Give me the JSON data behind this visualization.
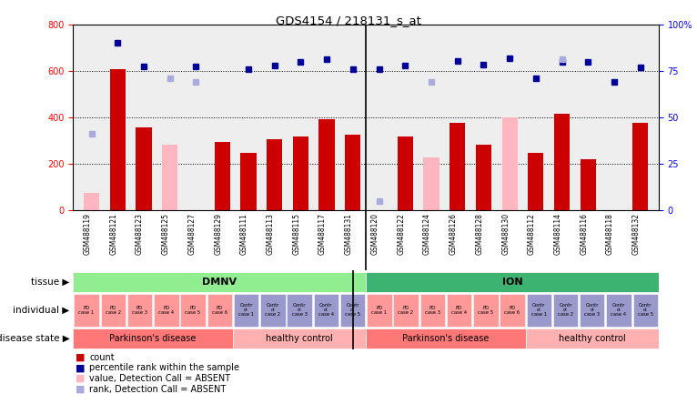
{
  "title": "GDS4154 / 218131_s_at",
  "samples": [
    "GSM488119",
    "GSM488121",
    "GSM488123",
    "GSM488125",
    "GSM488127",
    "GSM488129",
    "GSM488111",
    "GSM488113",
    "GSM488115",
    "GSM488117",
    "GSM488131",
    "GSM488120",
    "GSM488122",
    "GSM488124",
    "GSM488126",
    "GSM488128",
    "GSM488130",
    "GSM488112",
    "GSM488114",
    "GSM488116",
    "GSM488118",
    "GSM488132"
  ],
  "count_values": [
    null,
    605,
    355,
    null,
    null,
    295,
    248,
    305,
    315,
    390,
    325,
    null,
    315,
    null,
    375,
    280,
    null,
    245,
    415,
    220,
    null,
    375
  ],
  "count_absent": [
    75,
    null,
    null,
    280,
    null,
    null,
    null,
    null,
    null,
    null,
    null,
    null,
    null,
    225,
    null,
    null,
    400,
    null,
    null,
    null,
    null,
    null
  ],
  "percentile_values": [
    null,
    90,
    77.5,
    null,
    77.5,
    null,
    76,
    77.75,
    79.75,
    81,
    76,
    76,
    77.75,
    null,
    80,
    78.375,
    81.875,
    71,
    79.75,
    79.75,
    68.75,
    77
  ],
  "percentile_absent": [
    41.25,
    null,
    null,
    71,
    68.75,
    null,
    null,
    null,
    null,
    null,
    null,
    5,
    null,
    68.75,
    null,
    null,
    null,
    null,
    81,
    null,
    null,
    null
  ],
  "tissue_groups": [
    {
      "label": "DMNV",
      "start": 0,
      "end": 10,
      "color": "#90EE90"
    },
    {
      "label": "ION",
      "start": 11,
      "end": 21,
      "color": "#3CB371"
    }
  ],
  "individual_labels": [
    "PD\ncase 1",
    "PD\ncase 2",
    "PD\ncase 3",
    "PD\ncase 4",
    "PD\ncase 5",
    "PD\ncase 6",
    "Contr\nol\ncase 1",
    "Contr\nol\ncase 2",
    "Contr\nol\ncase 3",
    "Contr\nol\ncase 4",
    "Contr\nol\ncase 5",
    "PD\ncase 1",
    "PD\ncase 2",
    "PD\ncase 3",
    "PD\ncase 4",
    "PD\ncase 5",
    "PD\ncase 6",
    "Contr\nol\ncase 1",
    "Contr\nol\ncase 2",
    "Contr\nol\ncase 3",
    "Contr\nol\ncase 4",
    "Contr\nol\ncase 5"
  ],
  "individual_colors": [
    "#FF9999",
    "#FF9999",
    "#FF9999",
    "#FF9999",
    "#FF9999",
    "#FF9999",
    "#9999CC",
    "#9999CC",
    "#9999CC",
    "#9999CC",
    "#9999CC",
    "#FF9999",
    "#FF9999",
    "#FF9999",
    "#FF9999",
    "#FF9999",
    "#FF9999",
    "#9999CC",
    "#9999CC",
    "#9999CC",
    "#9999CC",
    "#9999CC"
  ],
  "disease_groups": [
    {
      "label": "Parkinson's disease",
      "start": 0,
      "end": 5,
      "color": "#FF7777"
    },
    {
      "label": "healthy control",
      "start": 6,
      "end": 10,
      "color": "#FFB0B0"
    },
    {
      "label": "Parkinson's disease",
      "start": 11,
      "end": 16,
      "color": "#FF7777"
    },
    {
      "label": "healthy control",
      "start": 17,
      "end": 21,
      "color": "#FFB0B0"
    }
  ],
  "ylim_left": [
    0,
    800
  ],
  "ylim_right": [
    0,
    100
  ],
  "yticks_left": [
    0,
    200,
    400,
    600,
    800
  ],
  "yticks_right": [
    0,
    25,
    50,
    75,
    100
  ],
  "bar_color": "#CC0000",
  "absent_bar_color": "#FFB6C1",
  "dot_color": "#000099",
  "absent_dot_color": "#AAAADD",
  "background_color": "#FFFFFF",
  "plot_bg": "#EEEEEE",
  "n_samples": 22,
  "sep_index": 10.5
}
